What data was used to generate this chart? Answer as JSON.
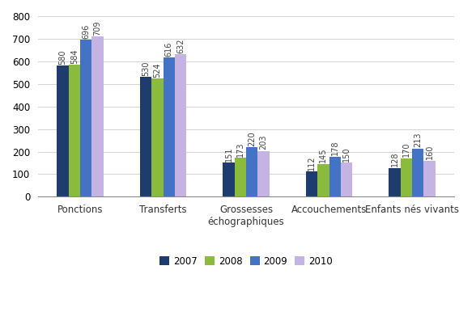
{
  "categories": [
    "Ponctions",
    "Transferts",
    "Grossesses\néchographiques",
    "Accouchements",
    "Enfants nés vivants"
  ],
  "years": [
    "2007",
    "2008",
    "2009",
    "2010"
  ],
  "values": {
    "2007": [
      580,
      530,
      151,
      112,
      128
    ],
    "2008": [
      584,
      524,
      173,
      145,
      170
    ],
    "2009": [
      696,
      616,
      220,
      178,
      213
    ],
    "2010": [
      709,
      632,
      203,
      150,
      160
    ]
  },
  "colors": {
    "2007": "#1F3C6E",
    "2008": "#8BBB3C",
    "2009": "#4472C4",
    "2010": "#C5B4E3"
  },
  "ylim": [
    0,
    800
  ],
  "yticks": [
    0,
    100,
    200,
    300,
    400,
    500,
    600,
    700,
    800
  ],
  "bar_width": 0.14,
  "label_fontsize": 7.0,
  "tick_fontsize": 8.5,
  "legend_fontsize": 8.5
}
